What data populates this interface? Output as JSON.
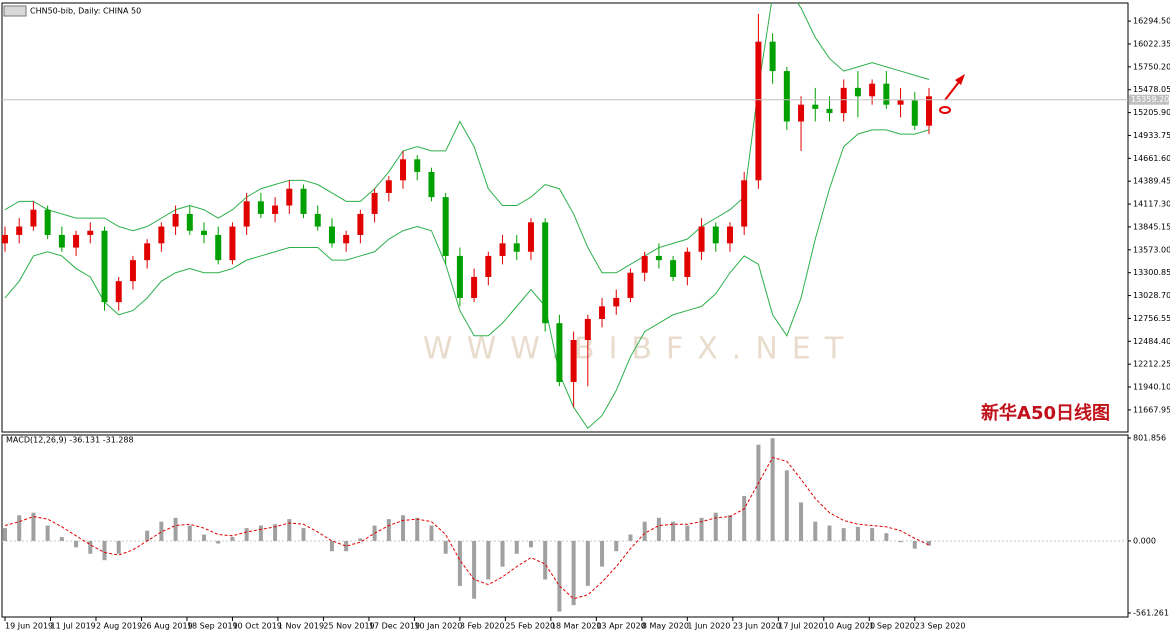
{
  "chart_data": [
    {
      "type": "candlestick",
      "title": "CHN50-bib, Daily:  CHINA 50",
      "annotation": "新华A50日线图",
      "watermark": "WWW.BIBFX.NET",
      "up_color": "#e00000",
      "down_color": "#00a000",
      "band_color": "#2db04b",
      "xlim": [
        0,
        79
      ],
      "xticks": [
        {
          "value": 0,
          "label": "19 Jun 2019"
        },
        {
          "value": 3.2,
          "label": "11 Jul 2019"
        },
        {
          "value": 6.4,
          "label": "2 Aug 2019"
        },
        {
          "value": 9.6,
          "label": "26 Aug 2019"
        },
        {
          "value": 12.8,
          "label": "18 Sep 2019"
        },
        {
          "value": 16,
          "label": "10 Oct 2019"
        },
        {
          "value": 19.2,
          "label": "1 Nov 2019"
        },
        {
          "value": 22.4,
          "label": "25 Nov 2019"
        },
        {
          "value": 25.6,
          "label": "17 Dec 2019"
        },
        {
          "value": 28.8,
          "label": "10 Jan 2020"
        },
        {
          "value": 32,
          "label": "3 Feb 2020"
        },
        {
          "value": 35.2,
          "label": "25 Feb 2020"
        },
        {
          "value": 38.4,
          "label": "18 Mar 2020"
        },
        {
          "value": 41.6,
          "label": "13 Apr 2020"
        },
        {
          "value": 44.8,
          "label": "8 May 2020"
        },
        {
          "value": 48,
          "label": "1 Jun 2020"
        },
        {
          "value": 51.2,
          "label": "23 Jun 2020"
        },
        {
          "value": 54.4,
          "label": "17 Jul 2020"
        },
        {
          "value": 57.6,
          "label": "10 Aug 2020"
        },
        {
          "value": 60.8,
          "label": "1 Sep 2020"
        },
        {
          "value": 64,
          "label": "23 Sep 2020"
        }
      ],
      "ylim": [
        11405,
        16510
      ],
      "yticks": [
        {
          "value": 16294.5,
          "label": "16294.50"
        },
        {
          "value": 16022.35,
          "label": "16022.35"
        },
        {
          "value": 15750.2,
          "label": "15750.20"
        },
        {
          "value": 15478.05,
          "label": "15478.05"
        },
        {
          "value": 15205.9,
          "label": "15205.90"
        },
        {
          "value": 14933.75,
          "label": "14933.75"
        },
        {
          "value": 14661.6,
          "label": "14661.60"
        },
        {
          "value": 14389.45,
          "label": "14389.45"
        },
        {
          "value": 14117.3,
          "label": "14117.30"
        },
        {
          "value": 13845.15,
          "label": "13845.15"
        },
        {
          "value": 13573,
          "label": "13573.00"
        },
        {
          "value": 13300.85,
          "label": "13300.85"
        },
        {
          "value": 13028.7,
          "label": "13028.70"
        },
        {
          "value": 12756.55,
          "label": "12756.55"
        },
        {
          "value": 12484.4,
          "label": "12484.40"
        },
        {
          "value": 12212.25,
          "label": "12212.25"
        },
        {
          "value": 11940.1,
          "label": "11940.10"
        },
        {
          "value": 11667.95,
          "label": "11667.95"
        }
      ],
      "current_price": {
        "value": 15359.2,
        "label": "15359.20"
      },
      "open": [
        13650,
        13750,
        13850,
        14050,
        13750,
        13600,
        13750,
        13800,
        12950,
        13200,
        13450,
        13650,
        13850,
        14000,
        13800,
        13750,
        13450,
        13850,
        14150,
        14000,
        14100,
        14300,
        14000,
        13850,
        13650,
        13750,
        14000,
        14250,
        14400,
        14650,
        14500,
        14200,
        13500,
        13000,
        13250,
        13500,
        13650,
        13550,
        13900,
        12700,
        12000,
        12500,
        12750,
        12900,
        13000,
        13300,
        13500,
        13450,
        13250,
        13550,
        13850,
        13650,
        13850,
        14400,
        16050,
        15700,
        15100,
        15300,
        15250,
        15200,
        15500,
        15400,
        15550,
        15300,
        15350,
        15050
      ],
      "high": [
        13850,
        13950,
        14150,
        14100,
        13850,
        13800,
        13900,
        13850,
        13250,
        13500,
        13700,
        13900,
        14100,
        14100,
        13900,
        13850,
        13900,
        14250,
        14250,
        14200,
        14400,
        14350,
        14100,
        13950,
        13800,
        14050,
        14300,
        14450,
        14750,
        14700,
        14550,
        14250,
        13600,
        13350,
        13550,
        13750,
        13750,
        13950,
        13950,
        12800,
        12600,
        12800,
        13000,
        13100,
        13350,
        13550,
        13650,
        13500,
        13600,
        13950,
        13900,
        13900,
        14500,
        16380,
        16150,
        15750,
        15400,
        15500,
        15400,
        15600,
        15700,
        15600,
        15700,
        15500,
        15450,
        15500
      ],
      "low": [
        13550,
        13650,
        13800,
        13700,
        13550,
        13500,
        13650,
        12850,
        12850,
        13100,
        13350,
        13550,
        13750,
        13750,
        13650,
        13400,
        13400,
        13750,
        13950,
        13900,
        14000,
        13950,
        13800,
        13600,
        13550,
        13650,
        13900,
        14150,
        14300,
        14400,
        14150,
        13400,
        12900,
        12950,
        13150,
        13400,
        13450,
        13450,
        12600,
        11950,
        11700,
        11950,
        12650,
        12800,
        12950,
        13200,
        13350,
        13200,
        13150,
        13450,
        13550,
        13550,
        13750,
        14300,
        15550,
        15000,
        14750,
        15100,
        15100,
        15100,
        15150,
        15300,
        15250,
        15150,
        15000,
        14950
      ],
      "close": [
        13750,
        13850,
        14050,
        13750,
        13600,
        13750,
        13800,
        12950,
        13200,
        13450,
        13650,
        13850,
        14000,
        13800,
        13750,
        13450,
        13850,
        14150,
        14000,
        14100,
        14300,
        14000,
        13850,
        13650,
        13750,
        14000,
        14250,
        14400,
        14650,
        14500,
        14200,
        13500,
        13000,
        13250,
        13500,
        13650,
        13550,
        13900,
        12700,
        12000,
        12500,
        12750,
        12900,
        13000,
        13300,
        13500,
        13450,
        13250,
        13550,
        13850,
        13650,
        13850,
        14400,
        16050,
        15700,
        15100,
        15300,
        15250,
        15200,
        15500,
        15400,
        15550,
        15300,
        15350,
        15050,
        15400
      ],
      "bands": [
        {
          "values": [
            14050,
            14150,
            14150,
            14050,
            14000,
            13950,
            13950,
            13950,
            13850,
            13800,
            13850,
            13950,
            14050,
            14100,
            14050,
            13950,
            14050,
            14200,
            14300,
            14350,
            14400,
            14400,
            14350,
            14250,
            14150,
            14150,
            14300,
            14500,
            14750,
            14800,
            14750,
            14750,
            15100,
            14800,
            14300,
            14100,
            14100,
            14200,
            14350,
            14300,
            14000,
            13600,
            13300,
            13300,
            13400,
            13500,
            13600,
            13650,
            13700,
            13850,
            13950,
            14050,
            14200,
            15500,
            16600,
            16700,
            16450,
            16100,
            15850,
            15700,
            15750,
            15800,
            15750,
            15700,
            15650,
            15600
          ]
        },
        {
          "values": [
            13000,
            13200,
            13500,
            13550,
            13500,
            13350,
            13250,
            12950,
            12800,
            12850,
            13000,
            13200,
            13300,
            13350,
            13300,
            13300,
            13350,
            13450,
            13500,
            13550,
            13600,
            13600,
            13600,
            13450,
            13450,
            13500,
            13550,
            13700,
            13800,
            13850,
            13800,
            13400,
            12850,
            12550,
            12550,
            12700,
            12900,
            13100,
            12900,
            12100,
            11700,
            11450,
            11600,
            11900,
            12300,
            12600,
            12700,
            12800,
            12850,
            12900,
            13050,
            13300,
            13500,
            13400,
            12800,
            12550,
            13000,
            13700,
            14300,
            14800,
            14950,
            15000,
            15000,
            14950,
            14950,
            15000
          ]
        }
      ]
    },
    {
      "type": "macd",
      "title": "MACD(12,26,9) -36.131 -31.288",
      "hist_color": "#a0a0a0",
      "signal_color": "#e00000",
      "ylim": [
        -561.261,
        801.856
      ],
      "yticks": [
        801.856,
        {
          "value": 0,
          "label": "0.000"
        },
        -561.261
      ],
      "histogram": [
        100,
        200,
        220,
        120,
        30,
        -50,
        -100,
        -150,
        -100,
        0,
        80,
        150,
        180,
        120,
        50,
        -20,
        30,
        100,
        120,
        130,
        170,
        100,
        0,
        -80,
        -80,
        20,
        120,
        170,
        200,
        180,
        120,
        -100,
        -350,
        -450,
        -300,
        -200,
        -100,
        -50,
        -300,
        -550,
        -500,
        -350,
        -200,
        -80,
        50,
        150,
        180,
        150,
        120,
        180,
        220,
        200,
        350,
        750,
        800,
        550,
        300,
        150,
        120,
        100,
        110,
        100,
        60,
        -10,
        -60,
        -36.131
      ],
      "signal": [
        120,
        150,
        190,
        170,
        110,
        40,
        -30,
        -90,
        -110,
        -70,
        0,
        70,
        120,
        130,
        100,
        50,
        40,
        70,
        90,
        110,
        140,
        130,
        70,
        0,
        -40,
        -10,
        60,
        120,
        160,
        170,
        150,
        50,
        -150,
        -300,
        -340,
        -280,
        -200,
        -130,
        -180,
        -350,
        -450,
        -420,
        -320,
        -200,
        -60,
        60,
        120,
        130,
        130,
        150,
        180,
        190,
        250,
        450,
        650,
        620,
        480,
        330,
        220,
        160,
        130,
        120,
        110,
        80,
        20,
        -31.288
      ]
    }
  ]
}
